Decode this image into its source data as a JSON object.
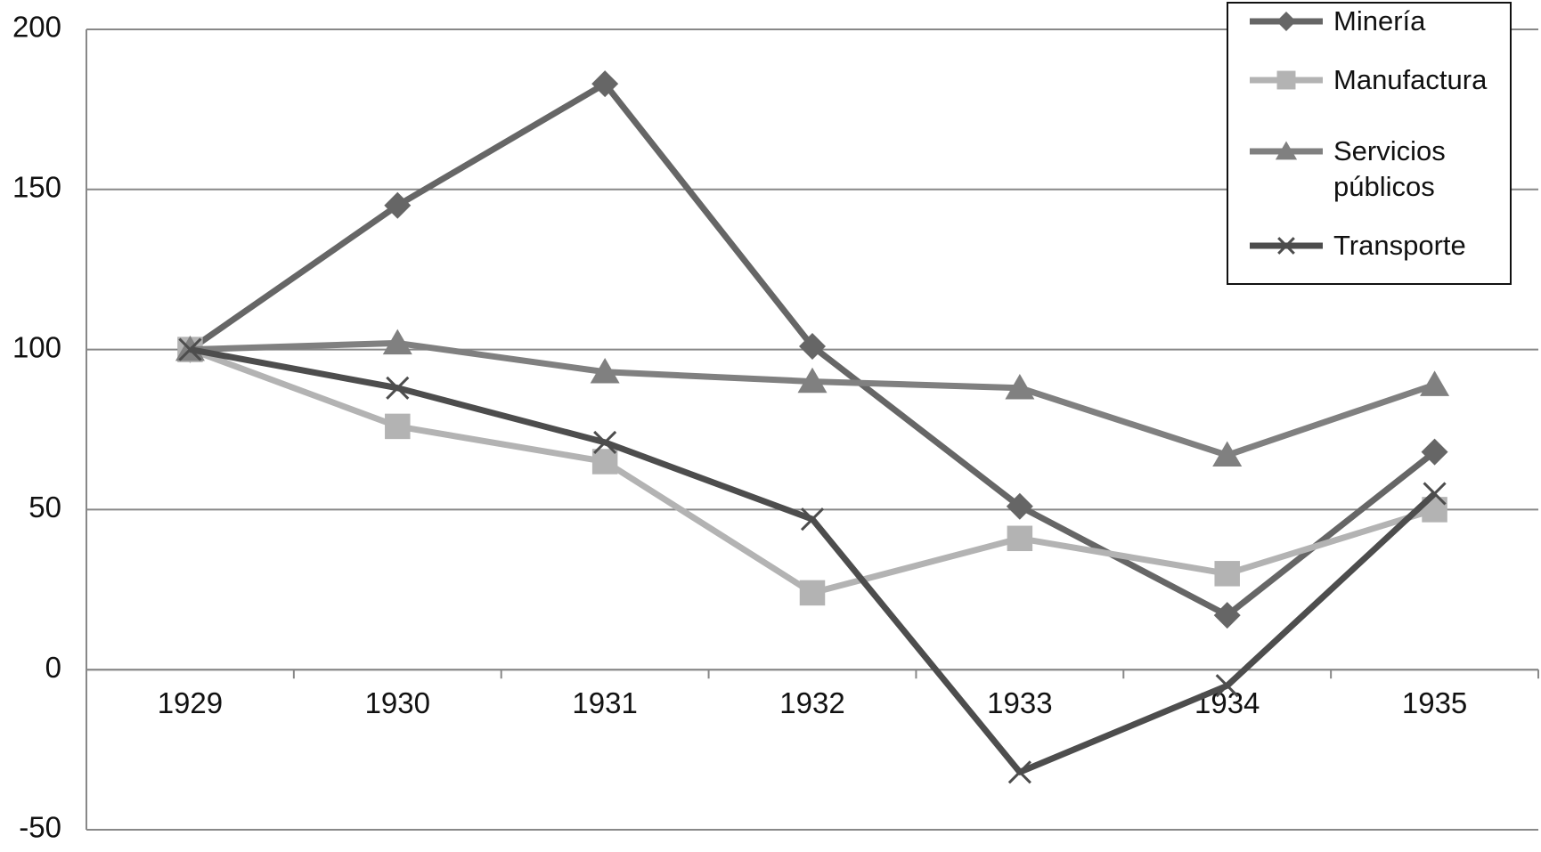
{
  "chart_data": {
    "type": "line",
    "categories": [
      "1929",
      "1930",
      "1931",
      "1932",
      "1933",
      "1934",
      "1935"
    ],
    "series": [
      {
        "name": "Minería",
        "color": "#666666",
        "marker": "diamond",
        "values": [
          100,
          145,
          183,
          101,
          51,
          17,
          68
        ]
      },
      {
        "name": "Manufactura",
        "color": "#b3b3b3",
        "marker": "square",
        "values": [
          100,
          76,
          65,
          24,
          41,
          30,
          50
        ]
      },
      {
        "name": "Servicios públicos",
        "color": "#808080",
        "marker": "triangle",
        "values": [
          100,
          102,
          93,
          90,
          88,
          67,
          89
        ]
      },
      {
        "name": "Transporte",
        "color": "#4d4d4d",
        "marker": "x",
        "values": [
          100,
          88,
          71,
          47,
          -32,
          -5,
          55
        ]
      }
    ],
    "ylim": [
      -50,
      200
    ],
    "yticks": [
      -50,
      0,
      50,
      100,
      150,
      200
    ],
    "grid": true,
    "legend": "top-right"
  }
}
